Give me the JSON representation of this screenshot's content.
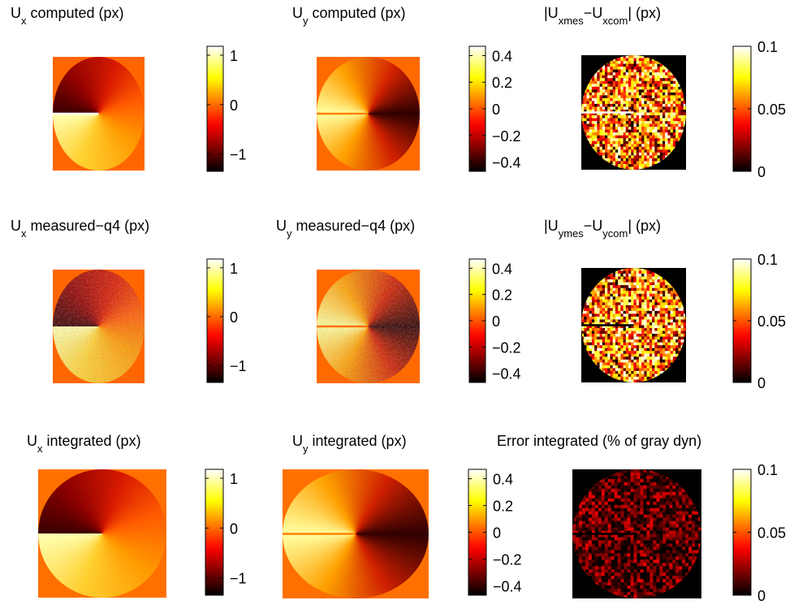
{
  "chart_data": [
    {
      "type": "heatmap",
      "title_parts": [
        {
          "text": "U"
        },
        {
          "text": "x",
          "sub": true
        },
        {
          "text": " computed (px)"
        }
      ],
      "colormap": "hot",
      "clim": [
        -1.35,
        1.18
      ],
      "cticks": [
        1,
        0,
        {
          "value": -1,
          "label": "−1"
        }
      ]
    },
    {
      "type": "heatmap",
      "title_parts": [
        {
          "text": "U"
        },
        {
          "text": "y",
          "sub": true
        },
        {
          "text": " computed (px)"
        }
      ],
      "colormap": "hot",
      "clim": [
        -0.47,
        0.47
      ],
      "cticks": [
        0.4,
        0.2,
        0,
        {
          "value": -0.2,
          "label": "−0.2"
        },
        {
          "value": -0.4,
          "label": "−0.4"
        }
      ]
    },
    {
      "type": "heatmap",
      "title_parts": [
        {
          "text": "|U"
        },
        {
          "text": "xmes",
          "sub": true
        },
        {
          "text": "−U"
        },
        {
          "text": "xcom",
          "sub": true
        },
        {
          "text": "| (px)"
        }
      ],
      "colormap": "hot",
      "clim": [
        0,
        0.1
      ],
      "cticks": [
        0.1,
        0.05,
        0
      ]
    },
    {
      "type": "heatmap",
      "title_parts": [
        {
          "text": "U"
        },
        {
          "text": "x",
          "sub": true
        },
        {
          "text": " measured−q4 (px)"
        }
      ],
      "colormap": "hot",
      "clim": [
        -1.35,
        1.18
      ],
      "cticks": [
        1,
        0,
        {
          "value": -1,
          "label": "−1"
        }
      ]
    },
    {
      "type": "heatmap",
      "title_parts": [
        {
          "text": "U"
        },
        {
          "text": "y",
          "sub": true
        },
        {
          "text": " measured−q4 (px)"
        }
      ],
      "colormap": "hot",
      "clim": [
        -0.47,
        0.47
      ],
      "cticks": [
        0.4,
        0.2,
        0,
        {
          "value": -0.2,
          "label": "−0.2"
        },
        {
          "value": -0.4,
          "label": "−0.4"
        }
      ]
    },
    {
      "type": "heatmap",
      "title_parts": [
        {
          "text": "|U"
        },
        {
          "text": "ymes",
          "sub": true
        },
        {
          "text": "−U"
        },
        {
          "text": "ycom",
          "sub": true
        },
        {
          "text": "| (px)"
        }
      ],
      "colormap": "hot",
      "clim": [
        0,
        0.1
      ],
      "cticks": [
        0.1,
        0.05,
        0
      ]
    },
    {
      "type": "heatmap",
      "title_parts": [
        {
          "text": "U"
        },
        {
          "text": "x",
          "sub": true
        },
        {
          "text": " integrated (px)"
        }
      ],
      "colormap": "hot",
      "clim": [
        -1.35,
        1.18
      ],
      "cticks": [
        1,
        0,
        {
          "value": -1,
          "label": "−1"
        }
      ]
    },
    {
      "type": "heatmap",
      "title_parts": [
        {
          "text": "U"
        },
        {
          "text": "y",
          "sub": true
        },
        {
          "text": " integrated (px)"
        }
      ],
      "colormap": "hot",
      "clim": [
        -0.47,
        0.47
      ],
      "cticks": [
        0.4,
        0.2,
        0,
        {
          "value": -0.2,
          "label": "−0.2"
        },
        {
          "value": -0.4,
          "label": "−0.4"
        }
      ]
    },
    {
      "type": "heatmap",
      "title_parts": [
        {
          "text": "Error integrated (% of gray dyn)"
        }
      ],
      "colormap": "hot",
      "clim": [
        0,
        0.1
      ],
      "cticks": [
        0.1,
        0.05,
        0
      ]
    }
  ]
}
